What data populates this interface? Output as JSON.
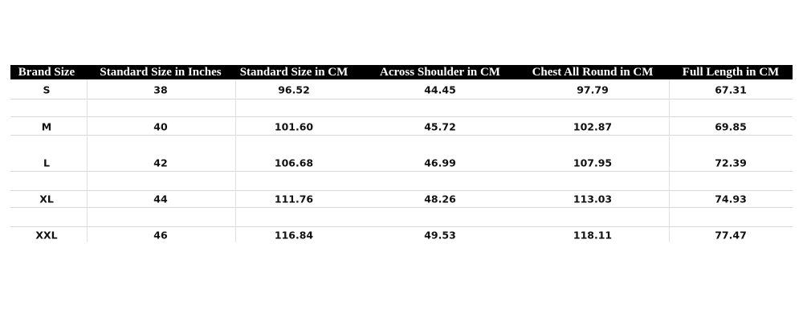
{
  "table": {
    "headers": [
      "Brand Size",
      "Standard Size in Inches",
      "Standard Size in CM",
      "Across Shoulder in CM",
      "Chest All Round in CM",
      "Full Length in CM"
    ],
    "rows": [
      [
        "S",
        "38",
        "96.52",
        "44.45",
        "97.79",
        "67.31"
      ],
      [
        "M",
        "40",
        "101.60",
        "45.72",
        "102.87",
        "69.85"
      ],
      [
        "L",
        "42",
        "106.68",
        "46.99",
        "107.95",
        "72.39"
      ],
      [
        "XL",
        "44",
        "111.76",
        "48.26",
        "113.03",
        "74.93"
      ],
      [
        "XXL",
        "46",
        "116.84",
        "49.53",
        "118.11",
        "77.47"
      ]
    ]
  }
}
